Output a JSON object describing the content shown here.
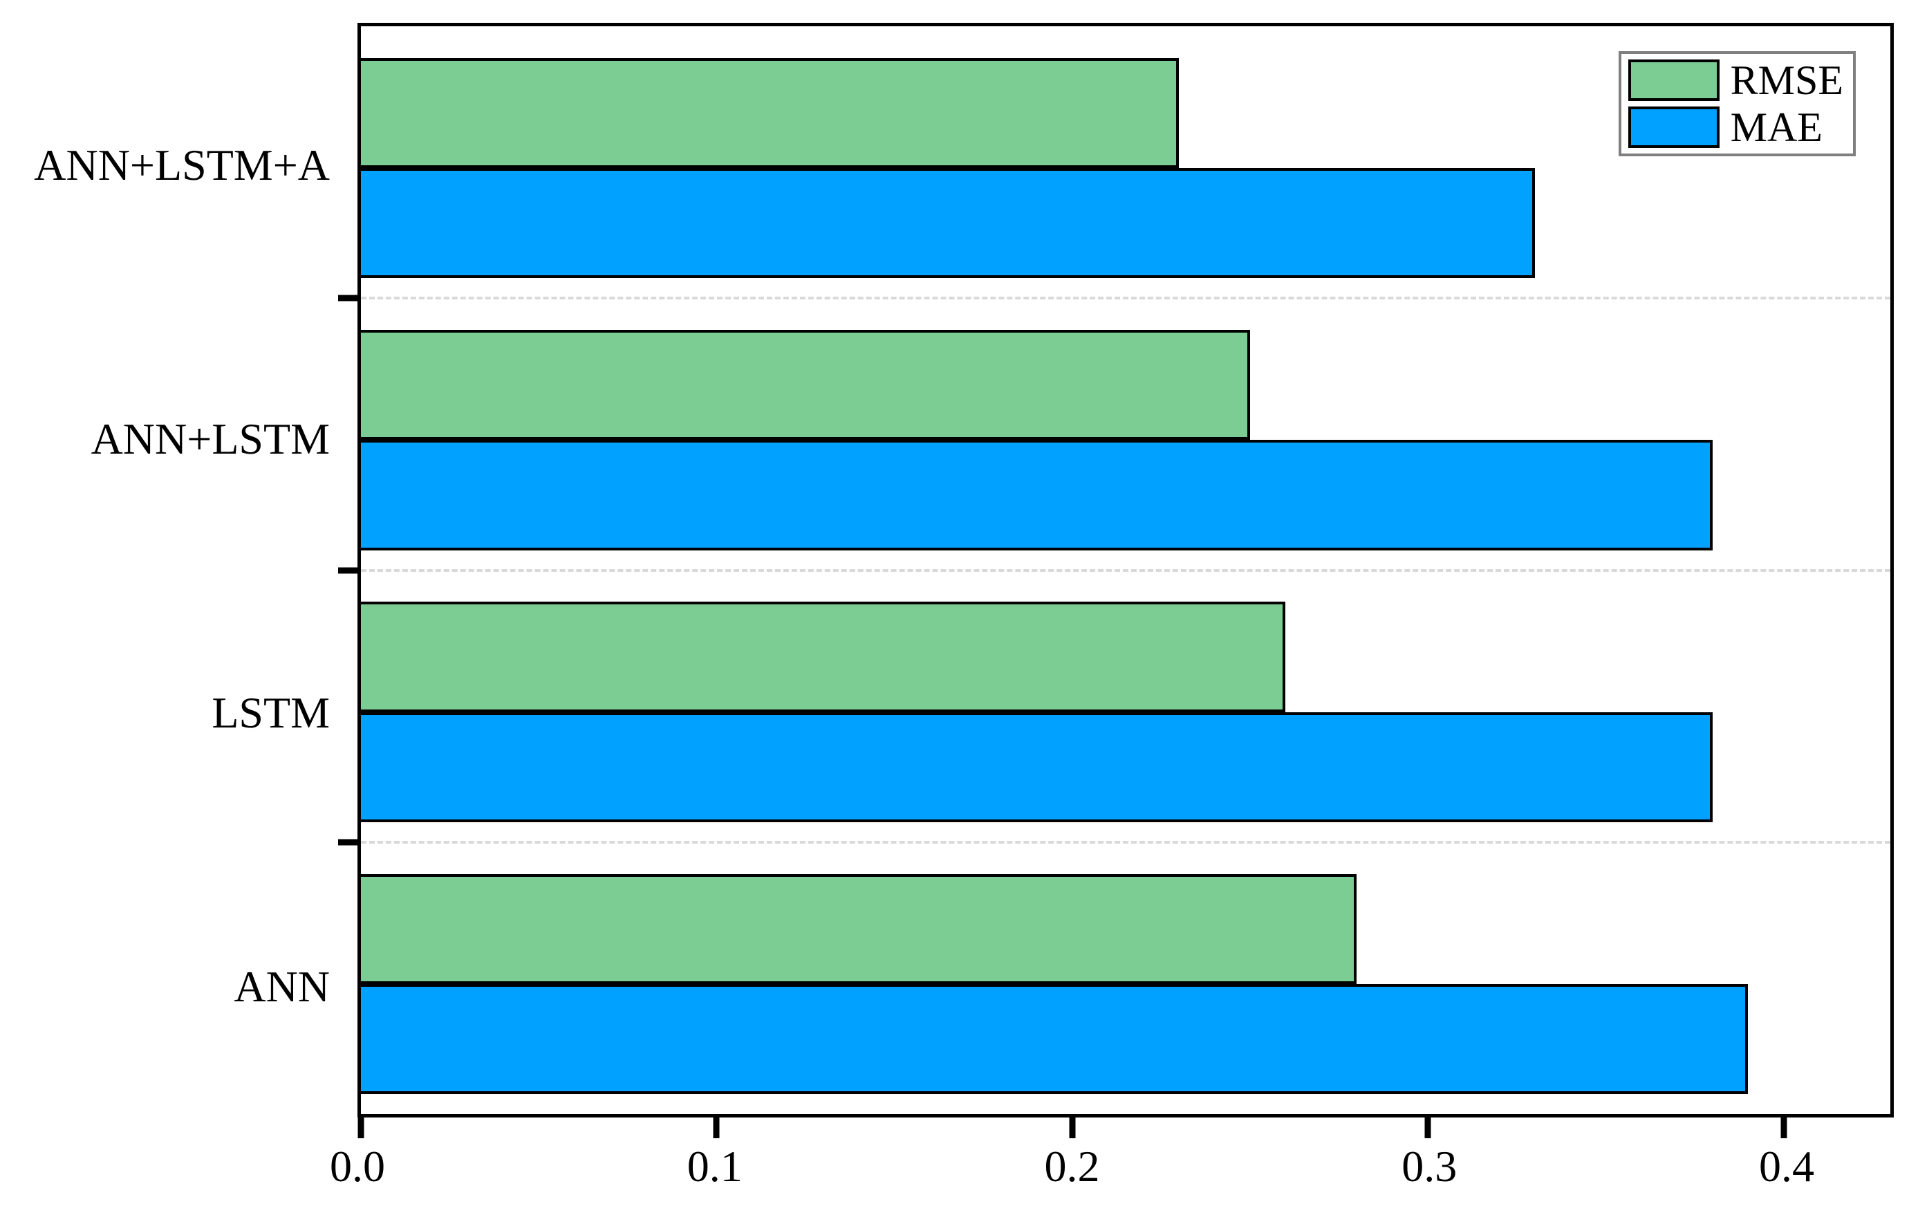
{
  "chart_data": {
    "type": "bar",
    "orientation": "horizontal",
    "order": "top_to_bottom",
    "categories": [
      "ANN+LSTM+A",
      "ANN+LSTM",
      "LSTM",
      "ANN"
    ],
    "series": [
      {
        "name": "RMSE",
        "color": "#7CCD94",
        "values": [
          0.23,
          0.25,
          0.26,
          0.28
        ]
      },
      {
        "name": "MAE",
        "color": "#00A1FF",
        "values": [
          0.33,
          0.38,
          0.38,
          0.39
        ]
      }
    ],
    "title": "",
    "xlabel": "",
    "ylabel": "",
    "xticks": [
      "0.0",
      "0.1",
      "0.2",
      "0.3",
      "0.4"
    ],
    "xtick_values": [
      0.0,
      0.1,
      0.2,
      0.3,
      0.4
    ],
    "xlim": [
      0,
      0.43
    ],
    "grid": "dashed horizontal lines between category groups",
    "legend_position": "upper right",
    "style": {
      "bar_edge_color": "#000000",
      "grid_color": "#d9d9d9",
      "legend_border_color": "#7f7f7f",
      "axis_color": "#000000",
      "background": "#ffffff"
    }
  }
}
